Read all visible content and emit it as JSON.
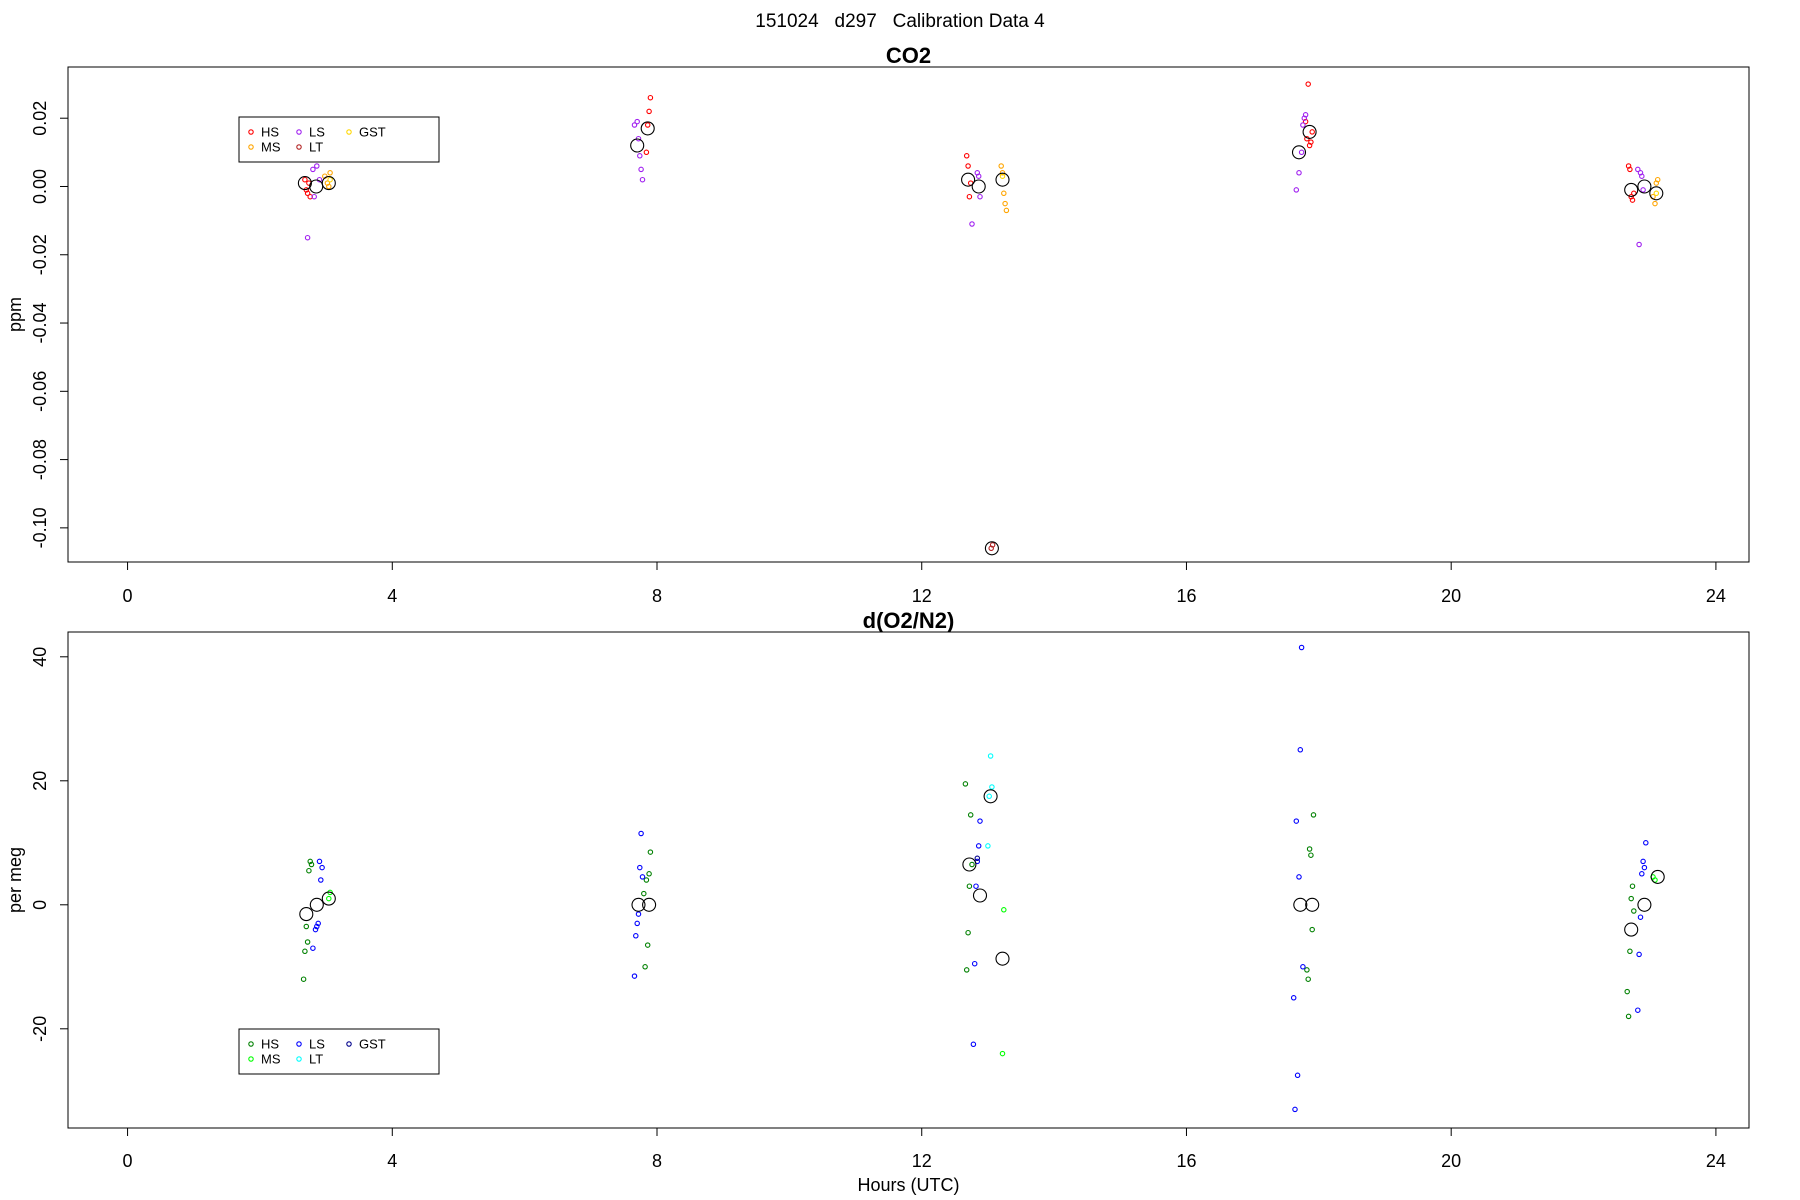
{
  "figure_title": "151024   d297   Calibration Data 4",
  "chart_data": [
    {
      "type": "scatter",
      "title": "CO2",
      "xlabel": "",
      "ylabel": "ppm",
      "xlim": [
        -0.9,
        24.5
      ],
      "ylim": [
        -0.11,
        0.035
      ],
      "xticks": [
        0,
        4,
        8,
        12,
        16,
        20,
        24
      ],
      "yticks": [
        -0.1,
        -0.08,
        -0.06,
        -0.04,
        -0.02,
        0.0,
        0.02
      ],
      "ytick_labels": [
        "-0.10",
        "-0.08",
        "-0.06",
        "-0.04",
        "-0.02",
        "0.00",
        "0.02"
      ],
      "legend": {
        "position": "top-left",
        "entries": [
          {
            "name": "HS",
            "color": "#ff0000"
          },
          {
            "name": "MS",
            "color": "#ffa500"
          },
          {
            "name": "LS",
            "color": "#a020f0"
          },
          {
            "name": "LT",
            "color": "#b22222"
          },
          {
            "name": "GST",
            "color": "#ffd700"
          }
        ]
      },
      "series": [
        {
          "name": "HS",
          "color": "#ff0000",
          "points": [
            [
              2.68,
              0.002
            ],
            [
              2.7,
              -0.001
            ],
            [
              2.72,
              -0.002
            ],
            [
              2.74,
              0.001
            ],
            [
              2.76,
              -0.003
            ],
            [
              7.88,
              0.022
            ],
            [
              7.86,
              0.018
            ],
            [
              7.84,
              0.01
            ],
            [
              7.9,
              0.026
            ],
            [
              12.68,
              0.009
            ],
            [
              12.7,
              0.006
            ],
            [
              12.72,
              -0.003
            ],
            [
              12.74,
              0.001
            ],
            [
              17.82,
              0.014
            ],
            [
              17.86,
              0.012
            ],
            [
              17.88,
              0.013
            ],
            [
              17.9,
              0.016
            ],
            [
              17.8,
              0.019
            ],
            [
              17.84,
              0.03
            ],
            [
              22.68,
              0.006
            ],
            [
              22.7,
              0.005
            ],
            [
              22.72,
              -0.003
            ],
            [
              22.74,
              -0.004
            ],
            [
              22.76,
              -0.002
            ]
          ]
        },
        {
          "name": "MS",
          "color": "#ffa500",
          "points": [
            [
              2.98,
              0.003
            ],
            [
              3.02,
              0.001
            ],
            [
              3.06,
              0.004
            ],
            [
              3.04,
              0.0
            ],
            [
              13.2,
              0.006
            ],
            [
              13.22,
              0.004
            ],
            [
              13.24,
              -0.002
            ],
            [
              13.26,
              -0.005
            ],
            [
              13.28,
              -0.007
            ],
            [
              23.05,
              -0.003
            ],
            [
              23.08,
              -0.005
            ],
            [
              23.1,
              0.001
            ],
            [
              23.12,
              0.002
            ]
          ]
        },
        {
          "name": "LS",
          "color": "#a020f0",
          "points": [
            [
              2.72,
              -0.015
            ],
            [
              2.8,
              0.005
            ],
            [
              2.82,
              -0.003
            ],
            [
              2.86,
              0.006
            ],
            [
              2.9,
              0.002
            ],
            [
              7.66,
              0.018
            ],
            [
              7.7,
              0.019
            ],
            [
              7.72,
              0.014
            ],
            [
              7.74,
              0.009
            ],
            [
              7.76,
              0.005
            ],
            [
              7.78,
              0.002
            ],
            [
              12.76,
              -0.011
            ],
            [
              12.84,
              0.004
            ],
            [
              12.86,
              0.003
            ],
            [
              12.88,
              -0.003
            ],
            [
              17.66,
              -0.001
            ],
            [
              17.7,
              0.004
            ],
            [
              17.74,
              0.01
            ],
            [
              17.76,
              0.018
            ],
            [
              17.78,
              0.02
            ],
            [
              17.8,
              0.021
            ],
            [
              22.82,
              0.005
            ],
            [
              22.84,
              -0.017
            ],
            [
              22.86,
              0.004
            ],
            [
              22.88,
              0.003
            ],
            [
              22.9,
              -0.001
            ]
          ]
        },
        {
          "name": "LT",
          "color": "#b22222",
          "points": [
            [
              13.05,
              -0.106
            ],
            [
              13.07,
              -0.105
            ]
          ]
        },
        {
          "name": "GST",
          "color": "#ffd700",
          "points": [
            [
              3.06,
              0.002
            ],
            [
              23.1,
              -0.002
            ],
            [
              13.22,
              0.003
            ]
          ]
        }
      ],
      "means": [
        [
          2.68,
          0.001
        ],
        [
          2.85,
          0.0
        ],
        [
          3.04,
          0.001
        ],
        [
          7.7,
          0.012
        ],
        [
          7.86,
          0.017
        ],
        [
          12.7,
          0.002
        ],
        [
          12.86,
          0.0
        ],
        [
          13.06,
          -0.106
        ],
        [
          13.22,
          0.002
        ],
        [
          17.7,
          0.01
        ],
        [
          17.86,
          0.016
        ],
        [
          22.72,
          -0.001
        ],
        [
          22.92,
          0.0
        ],
        [
          23.1,
          -0.002
        ]
      ]
    },
    {
      "type": "scatter",
      "title": "d(O2/N2)",
      "xlabel": "Hours (UTC)",
      "ylabel": "per meg",
      "xlim": [
        -0.9,
        24.5
      ],
      "ylim": [
        -36,
        44
      ],
      "xticks": [
        0,
        4,
        8,
        12,
        16,
        20,
        24
      ],
      "yticks": [
        -20,
        0,
        20,
        40
      ],
      "ytick_labels": [
        "-20",
        "0",
        "20",
        "40"
      ],
      "legend": {
        "position": "bottom-left",
        "entries": [
          {
            "name": "HS",
            "color": "#008000"
          },
          {
            "name": "MS",
            "color": "#00ff00"
          },
          {
            "name": "LS",
            "color": "#0000ff"
          },
          {
            "name": "LT",
            "color": "#00ffff"
          },
          {
            "name": "GST",
            "color": "#00008b"
          }
        ]
      },
      "series": [
        {
          "name": "HS",
          "color": "#008000",
          "points": [
            [
              2.66,
              -12
            ],
            [
              2.68,
              -7.5
            ],
            [
              2.7,
              -3.5
            ],
            [
              2.72,
              -6
            ],
            [
              2.74,
              5.5
            ],
            [
              2.76,
              7
            ],
            [
              2.78,
              6.5
            ],
            [
              7.8,
              1.8
            ],
            [
              7.82,
              -10
            ],
            [
              7.84,
              4
            ],
            [
              7.86,
              -6.5
            ],
            [
              7.88,
              5
            ],
            [
              7.9,
              8.5
            ],
            [
              12.66,
              19.5
            ],
            [
              12.68,
              -10.5
            ],
            [
              12.7,
              -4.5
            ],
            [
              12.72,
              3
            ],
            [
              12.74,
              14.5
            ],
            [
              12.76,
              6.5
            ],
            [
              17.88,
              8
            ],
            [
              17.86,
              9
            ],
            [
              17.9,
              -4
            ],
            [
              17.84,
              -12
            ],
            [
              17.82,
              -10.5
            ],
            [
              17.92,
              14.5
            ],
            [
              22.66,
              -14
            ],
            [
              22.68,
              -18
            ],
            [
              22.7,
              -7.5
            ],
            [
              22.72,
              1
            ],
            [
              22.74,
              3
            ],
            [
              22.76,
              -1
            ]
          ]
        },
        {
          "name": "MS",
          "color": "#00ff00",
          "points": [
            [
              3.04,
              1
            ],
            [
              3.06,
              2
            ],
            [
              13.22,
              -24
            ],
            [
              13.24,
              -0.8
            ],
            [
              23.05,
              4.5
            ],
            [
              23.08,
              4
            ]
          ]
        },
        {
          "name": "LS",
          "color": "#0000ff",
          "points": [
            [
              2.84,
              -4
            ],
            [
              2.86,
              -3.5
            ],
            [
              2.88,
              -3
            ],
            [
              2.8,
              -7
            ],
            [
              2.92,
              4
            ],
            [
              2.94,
              6
            ],
            [
              2.9,
              7
            ],
            [
              7.66,
              -11.5
            ],
            [
              7.68,
              -5
            ],
            [
              7.7,
              -3
            ],
            [
              7.72,
              -1.5
            ],
            [
              7.74,
              6
            ],
            [
              7.76,
              11.5
            ],
            [
              7.78,
              4.5
            ],
            [
              12.78,
              -22.5
            ],
            [
              12.8,
              -9.5
            ],
            [
              12.82,
              3
            ],
            [
              12.84,
              7
            ],
            [
              12.86,
              9.5
            ],
            [
              12.88,
              13.5
            ],
            [
              17.62,
              -15
            ],
            [
              17.64,
              -33
            ],
            [
              17.66,
              13.5
            ],
            [
              17.68,
              -27.5
            ],
            [
              17.7,
              4.5
            ],
            [
              17.72,
              25
            ],
            [
              17.74,
              41.5
            ],
            [
              17.76,
              -10
            ],
            [
              22.82,
              -17
            ],
            [
              22.84,
              -8
            ],
            [
              22.86,
              -2
            ],
            [
              22.88,
              5
            ],
            [
              22.9,
              7
            ],
            [
              22.92,
              6
            ],
            [
              22.94,
              10
            ]
          ]
        },
        {
          "name": "LT",
          "color": "#00ffff",
          "points": [
            [
              13.0,
              9.5
            ],
            [
              13.04,
              24
            ],
            [
              13.06,
              19
            ],
            [
              13.02,
              17.5
            ]
          ]
        },
        {
          "name": "GST",
          "color": "#00008b",
          "points": [
            [
              12.84,
              7.5
            ]
          ]
        }
      ],
      "means": [
        [
          2.7,
          -1.5
        ],
        [
          2.86,
          0
        ],
        [
          3.04,
          1
        ],
        [
          7.72,
          0
        ],
        [
          7.88,
          0
        ],
        [
          12.72,
          6.5
        ],
        [
          12.88,
          1.5
        ],
        [
          13.04,
          17.5
        ],
        [
          13.22,
          -8.7
        ],
        [
          17.72,
          0
        ],
        [
          17.9,
          0
        ],
        [
          22.72,
          -4
        ],
        [
          22.92,
          0
        ],
        [
          23.12,
          4.5
        ]
      ]
    }
  ]
}
